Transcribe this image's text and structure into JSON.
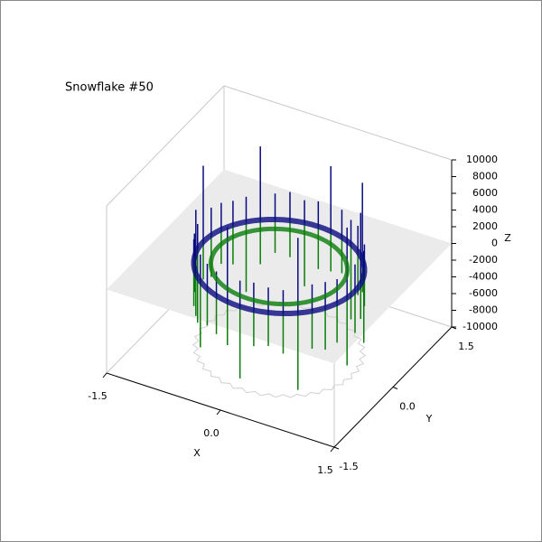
{
  "chart_data": {
    "type": "spikes3d",
    "title": "Snowflake #50",
    "xlabel": "X",
    "ylabel": "Y",
    "zlabel": "Z",
    "xlim": [
      -1.5,
      1.5
    ],
    "ylim": [
      -1.5,
      1.5
    ],
    "zlim": [
      -10000,
      10000
    ],
    "xticks": [
      {
        "value": -1.5,
        "label": "-1.5"
      },
      {
        "value": 0,
        "label": "0.0"
      },
      {
        "value": 1.5,
        "label": "1.5"
      }
    ],
    "yticks": [
      {
        "value": -1.5,
        "label": "-1.5"
      },
      {
        "value": 0,
        "label": "0.0"
      },
      {
        "value": 1.5,
        "label": "1.5"
      }
    ],
    "zticks": [
      -10000,
      -8000,
      -6000,
      -4000,
      -2000,
      0,
      2000,
      4000,
      6000,
      8000,
      10000
    ],
    "x": [
      0,
      10,
      20,
      30,
      40,
      50,
      60,
      70,
      80,
      90,
      100,
      110,
      120,
      130,
      140,
      150,
      160,
      170,
      180,
      190,
      200,
      210,
      220,
      230,
      240,
      250,
      260,
      270,
      280,
      290,
      300,
      310,
      320,
      330,
      340,
      350
    ],
    "series": [
      {
        "color": "#0a0a80",
        "values": [
          3200,
          8500,
          3000,
          2800,
          9200,
          3100,
          2900,
          3300,
          7800,
          3000,
          2700,
          3400,
          3100,
          8800,
          3000,
          2900,
          3200,
          3300,
          9100,
          3000,
          2800,
          3100,
          7600,
          3200,
          3000,
          2900,
          8900,
          3100,
          3300,
          3000,
          2800,
          9000,
          3200,
          3100,
          2900,
          8400
        ]
      },
      {
        "color": "#0a7d0a",
        "values": [
          -5000,
          -4200,
          -8000,
          -4600,
          -3900,
          -5200,
          -9000,
          -4300,
          -4800,
          -5100,
          -7600,
          -4400,
          -4000,
          -5300,
          -8400,
          -4700,
          -4100,
          -5000,
          -4500,
          -8800,
          -4200,
          -4900,
          -5100,
          -7900,
          -4400,
          -4600,
          -5200,
          -8600,
          -4300,
          -4000,
          -4800,
          -9200,
          -4500,
          -5000,
          -4700,
          -8100
        ]
      }
    ]
  }
}
